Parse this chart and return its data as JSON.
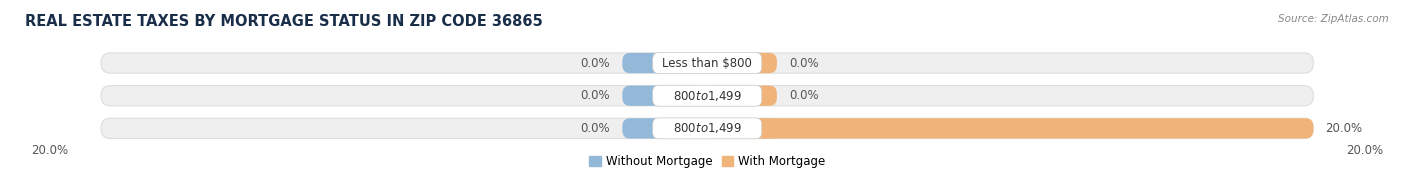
{
  "title": "REAL ESTATE TAXES BY MORTGAGE STATUS IN ZIP CODE 36865",
  "source": "Source: ZipAtlas.com",
  "categories": [
    "Less than $800",
    "$800 to $1,499",
    "$800 to $1,499"
  ],
  "without_mortgage": [
    0.0,
    0.0,
    0.0
  ],
  "with_mortgage": [
    0.0,
    0.0,
    20.0
  ],
  "x_max": 20.0,
  "color_without": "#93b8d8",
  "color_with": "#f0b47a",
  "color_bg_bar": "#efefef",
  "color_bg_bar_edge": "#dddddd",
  "legend_without": "Without Mortgage",
  "legend_with": "With Mortgage",
  "x_axis_left_label": "20.0%",
  "x_axis_right_label": "20.0%",
  "title_color": "#1a2e4a",
  "label_fontsize": 8.5,
  "title_fontsize": 10.5,
  "source_fontsize": 7.5
}
